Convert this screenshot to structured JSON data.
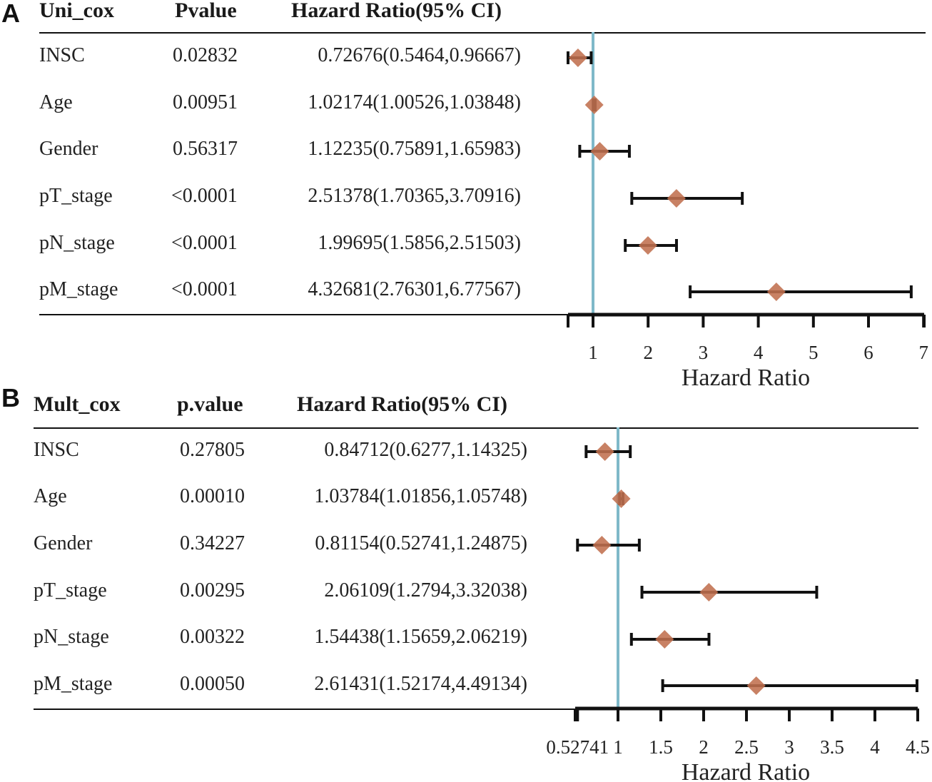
{
  "colors": {
    "reference_line": "#7FB9C9",
    "point": "#C0704F",
    "ci_line": "#111111",
    "axis": "#111111"
  },
  "panels": [
    {
      "letter": "A",
      "headers": {
        "label": "Uni_cox",
        "pvalue": "Pvalue",
        "hr": "Hazard Ratio(95% CI)"
      },
      "rows": [
        {
          "label": "INSC",
          "pvalue": "0.02832",
          "hr_text": "0.72676(0.5464,0.96667)"
        },
        {
          "label": "Age",
          "pvalue": "0.00951",
          "hr_text": "1.02174(1.00526,1.03848)"
        },
        {
          "label": "Gender",
          "pvalue": "0.56317",
          "hr_text": "1.12235(0.75891,1.65983)"
        },
        {
          "label": "pT_stage",
          "pvalue": "<0.0001",
          "hr_text": "2.51378(1.70365,3.70916)"
        },
        {
          "label": "pN_stage",
          "pvalue": "<0.0001",
          "hr_text": "1.99695(1.5856,2.51503)"
        },
        {
          "label": "pM_stage",
          "pvalue": "<0.0001",
          "hr_text": "4.32681(2.76301,6.77567)"
        }
      ]
    },
    {
      "letter": "B",
      "headers": {
        "label": "Mult_cox",
        "pvalue": "p.value",
        "hr": "Hazard Ratio(95% CI)"
      },
      "rows": [
        {
          "label": "INSC",
          "pvalue": "0.27805",
          "hr_text": "0.84712(0.6277,1.14325)"
        },
        {
          "label": "Age",
          "pvalue": "0.00010",
          "hr_text": "1.03784(1.01856,1.05748)"
        },
        {
          "label": "Gender",
          "pvalue": "0.34227",
          "hr_text": "0.81154(0.52741,1.24875)"
        },
        {
          "label": "pT_stage",
          "pvalue": "0.00295",
          "hr_text": "2.06109(1.2794,3.32038)"
        },
        {
          "label": "pN_stage",
          "pvalue": "0.00322",
          "hr_text": "1.54438(1.15659,2.06219)"
        },
        {
          "label": "pM_stage",
          "pvalue": "0.00050",
          "hr_text": "2.61431(1.52174,4.49134)"
        }
      ]
    }
  ],
  "chart_data": [
    {
      "type": "forest",
      "title": "Uni_cox",
      "xlabel": "Hazard Ratio",
      "xlim": [
        0.6,
        7
      ],
      "reference_value": 1,
      "tick_values": [
        1,
        2,
        3,
        4,
        5,
        6,
        7
      ],
      "tick_labels": [
        "1",
        "2",
        "3",
        "4",
        "5",
        "6",
        "7"
      ],
      "categories": [
        "INSC",
        "Age",
        "Gender",
        "pT_stage",
        "pN_stage",
        "pM_stage"
      ],
      "hr": [
        0.72676,
        1.02174,
        1.12235,
        2.51378,
        1.99695,
        4.32681
      ],
      "lower": [
        0.5464,
        1.00526,
        0.75891,
        1.70365,
        1.5856,
        2.76301
      ],
      "upper": [
        0.96667,
        1.03848,
        1.65983,
        3.70916,
        2.51503,
        6.77567
      ]
    },
    {
      "type": "forest",
      "title": "Mult_cox",
      "xlabel": "Hazard Ratio",
      "xlim": [
        0.52741,
        4.5
      ],
      "reference_value": 1,
      "tick_values": [
        0.52741,
        1,
        1.5,
        2,
        2.5,
        3,
        3.5,
        4,
        4.5
      ],
      "tick_labels": [
        "0.52741",
        "1",
        "1.5",
        "2",
        "2.5",
        "3",
        "3.5",
        "4",
        "4.5"
      ],
      "categories": [
        "INSC",
        "Age",
        "Gender",
        "pT_stage",
        "pN_stage",
        "pM_stage"
      ],
      "hr": [
        0.84712,
        1.03784,
        0.81154,
        2.06109,
        1.54438,
        2.61431
      ],
      "lower": [
        0.6277,
        1.01856,
        0.52741,
        1.2794,
        1.15659,
        1.52174
      ],
      "upper": [
        1.14325,
        1.05748,
        1.24875,
        3.32038,
        2.06219,
        4.49134
      ]
    }
  ]
}
